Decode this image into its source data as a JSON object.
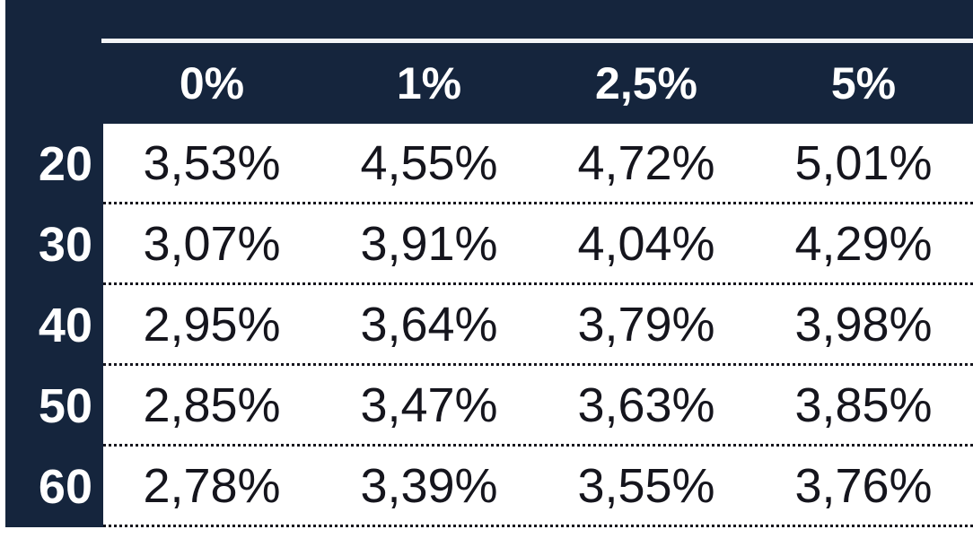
{
  "table": {
    "headers": [
      "0%",
      "1%",
      "2,5%",
      "5%"
    ],
    "rows": [
      {
        "label": "20",
        "values": [
          "3,53%",
          "4,55%",
          "4,72%",
          "5,01%"
        ]
      },
      {
        "label": "30",
        "values": [
          "3,07%",
          "3,91%",
          "4,04%",
          "4,29%"
        ]
      },
      {
        "label": "40",
        "values": [
          "2,95%",
          "3,64%",
          "3,79%",
          "3,98%"
        ]
      },
      {
        "label": "50",
        "values": [
          "2,85%",
          "3,47%",
          "3,63%",
          "3,85%"
        ]
      },
      {
        "label": "60",
        "values": [
          "2,78%",
          "3,39%",
          "3,55%",
          "3,76%"
        ]
      }
    ]
  },
  "colors": {
    "header_bg": "#15253D",
    "header_text": "#FFFFFF",
    "cell_text": "#15151D",
    "top_rule": "#F2F4F7",
    "row_separator": "#15151D"
  },
  "chart_data": {
    "type": "table",
    "col_headers": [
      "0%",
      "1%",
      "2,5%",
      "5%"
    ],
    "row_headers": [
      "20",
      "30",
      "40",
      "50",
      "60"
    ],
    "cells": [
      [
        "3,53%",
        "4,55%",
        "4,72%",
        "5,01%"
      ],
      [
        "3,07%",
        "3,91%",
        "4,04%",
        "4,29%"
      ],
      [
        "2,95%",
        "3,64%",
        "3,79%",
        "3,98%"
      ],
      [
        "2,85%",
        "3,47%",
        "3,63%",
        "3,85%"
      ],
      [
        "2,78%",
        "3,39%",
        "3,55%",
        "3,76%"
      ]
    ],
    "numeric_values_percent": [
      [
        3.53,
        4.55,
        4.72,
        5.01
      ],
      [
        3.07,
        3.91,
        4.04,
        4.29
      ],
      [
        2.95,
        3.64,
        3.79,
        3.98
      ],
      [
        2.85,
        3.47,
        3.63,
        3.85
      ],
      [
        2.78,
        3.39,
        3.55,
        3.76
      ]
    ],
    "layout_hints": {
      "header_style": "dark navy band with white bold text",
      "row_label_style": "dark navy column with white bold text",
      "separators": "dotted black horizontal lines between rows",
      "decimal_separator": "comma"
    }
  }
}
